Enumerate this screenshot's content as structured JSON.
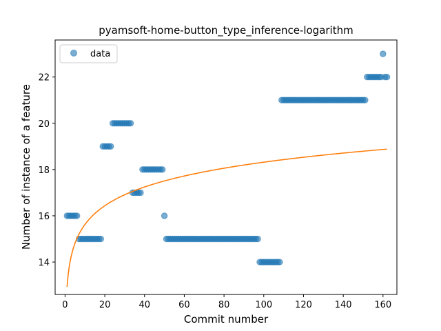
{
  "chart_data": {
    "type": "scatter",
    "title": "pyamsoft-home-button_type_inference-logarithm",
    "xlabel": "Commit number",
    "ylabel": "Number of instance of a feature",
    "xlim": [
      -5,
      167
    ],
    "ylim": [
      12.6,
      23.6
    ],
    "xticks": [
      0,
      20,
      40,
      60,
      80,
      100,
      120,
      140,
      160
    ],
    "yticks": [
      14,
      16,
      18,
      20,
      22
    ],
    "grid": false,
    "legend": {
      "entries": [
        "data"
      ],
      "placement": "top-left"
    },
    "series": [
      {
        "name": "data",
        "kind": "scatter",
        "color": "#1f77b4",
        "segments": [
          {
            "x_from": 1,
            "x_to": 6,
            "y": 16
          },
          {
            "x_from": 7,
            "x_to": 18,
            "y": 15
          },
          {
            "x_from": 19,
            "x_to": 23,
            "y": 19
          },
          {
            "x_from": 24,
            "x_to": 33,
            "y": 20
          },
          {
            "x_from": 34,
            "x_to": 38,
            "y": 17
          },
          {
            "x_from": 39,
            "x_to": 49,
            "y": 18
          },
          {
            "x_from": 50,
            "x_to": 50,
            "y": 16
          },
          {
            "x_from": 51,
            "x_to": 97,
            "y": 15
          },
          {
            "x_from": 98,
            "x_to": 108,
            "y": 14
          },
          {
            "x_from": 109,
            "x_to": 151,
            "y": 21
          },
          {
            "x_from": 152,
            "x_to": 159,
            "y": 22
          },
          {
            "x_from": 160,
            "x_to": 160,
            "y": 23
          },
          {
            "x_from": 161,
            "x_to": 162,
            "y": 22
          }
        ]
      },
      {
        "kind": "line",
        "color": "#ff7f0e",
        "fit": {
          "a": 12.93,
          "b": 1.17,
          "x_from": 1,
          "x_to": 162
        }
      }
    ]
  }
}
